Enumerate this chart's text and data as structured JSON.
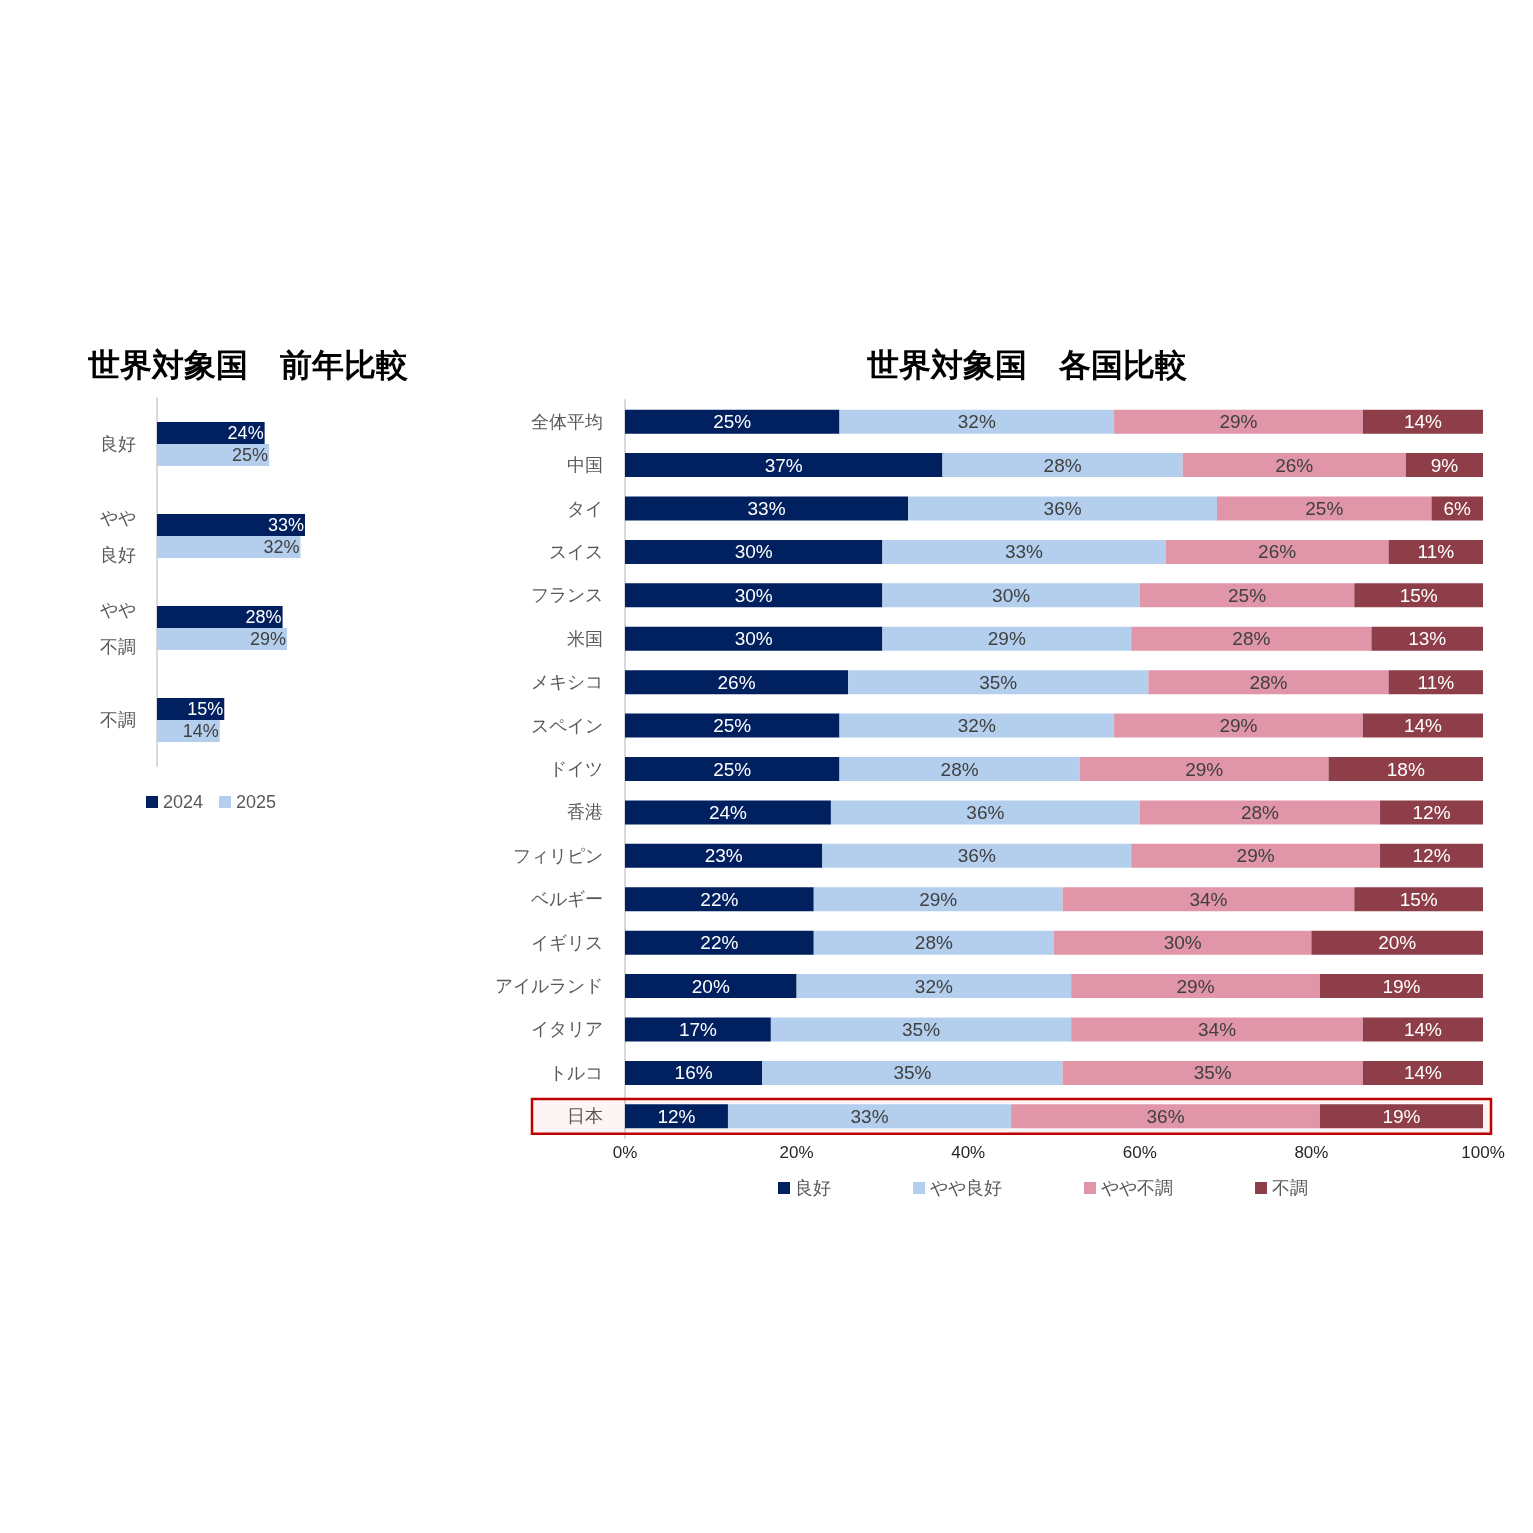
{
  "chart_data": [
    {
      "type": "bar",
      "orientation": "horizontal",
      "title": "世界対象国　前年比較",
      "categories": [
        "良好",
        "やや良好",
        "やや不調",
        "不調"
      ],
      "series": [
        {
          "name": "2024",
          "color": "#002060",
          "values": [
            24,
            33,
            28,
            15
          ],
          "value_labels": [
            "24%",
            "33%",
            "28%",
            "15%"
          ]
        },
        {
          "name": "2025",
          "color": "#b4cfee",
          "values": [
            25,
            32,
            29,
            14
          ],
          "value_labels": [
            "25%",
            "32%",
            "29%",
            "14%"
          ]
        }
      ],
      "legend": "bottom",
      "grid": false
    },
    {
      "type": "bar",
      "orientation": "horizontal",
      "stacked": true,
      "title": "世界対象国　各国比較",
      "categories": [
        "全体平均",
        "中国",
        "タイ",
        "スイス",
        "フランス",
        "米国",
        "メキシコ",
        "スペイン",
        "ドイツ",
        "香港",
        "フィリピン",
        "ベルギー",
        "イギリス",
        "アイルランド",
        "イタリア",
        "トルコ",
        "日本"
      ],
      "series": [
        {
          "name": "良好",
          "color": "#002060",
          "values": [
            25,
            37,
            33,
            30,
            30,
            30,
            26,
            25,
            25,
            24,
            23,
            22,
            22,
            20,
            17,
            16,
            12
          ],
          "value_labels": [
            "25%",
            "37%",
            "33%",
            "30%",
            "30%",
            "30%",
            "26%",
            "25%",
            "25%",
            "24%",
            "23%",
            "22%",
            "22%",
            "20%",
            "17%",
            "16%",
            "12%"
          ]
        },
        {
          "name": "やや良好",
          "color": "#b4cfee",
          "values": [
            32,
            28,
            36,
            33,
            30,
            29,
            35,
            32,
            28,
            36,
            36,
            29,
            28,
            32,
            35,
            35,
            33
          ],
          "value_labels": [
            "32%",
            "28%",
            "36%",
            "33%",
            "30%",
            "29%",
            "35%",
            "32%",
            "28%",
            "36%",
            "36%",
            "29%",
            "28%",
            "32%",
            "35%",
            "35%",
            "33%"
          ]
        },
        {
          "name": "やや不調",
          "color": "#e096a8",
          "values": [
            29,
            26,
            25,
            26,
            25,
            28,
            28,
            29,
            29,
            28,
            29,
            34,
            30,
            29,
            34,
            35,
            36
          ],
          "value_labels": [
            "29%",
            "26%",
            "25%",
            "26%",
            "25%",
            "28%",
            "28%",
            "29%",
            "29%",
            "28%",
            "29%",
            "34%",
            "30%",
            "29%",
            "34%",
            "35%",
            "36%"
          ]
        },
        {
          "name": "不調",
          "color": "#8e3e48",
          "values": [
            14,
            9,
            6,
            11,
            15,
            13,
            11,
            14,
            18,
            12,
            12,
            15,
            20,
            19,
            14,
            14,
            19
          ],
          "value_labels": [
            "14%",
            "9%",
            "6%",
            "11%",
            "15%",
            "13%",
            "11%",
            "14%",
            "18%",
            "12%",
            "12%",
            "15%",
            "20%",
            "19%",
            "14%",
            "14%",
            "19%"
          ]
        }
      ],
      "xlim": [
        0,
        100
      ],
      "xticks": [
        {
          "value": 0,
          "label": "0%"
        },
        {
          "value": 20,
          "label": "20%"
        },
        {
          "value": 40,
          "label": "40%"
        },
        {
          "value": 60,
          "label": "60%"
        },
        {
          "value": 80,
          "label": "80%"
        },
        {
          "value": 100,
          "label": "100%"
        }
      ],
      "bands": [
        {
          "axis": "y",
          "from": "日本",
          "to": "日本",
          "color": "#c00000"
        }
      ],
      "legend": "bottom",
      "grid": false
    }
  ]
}
